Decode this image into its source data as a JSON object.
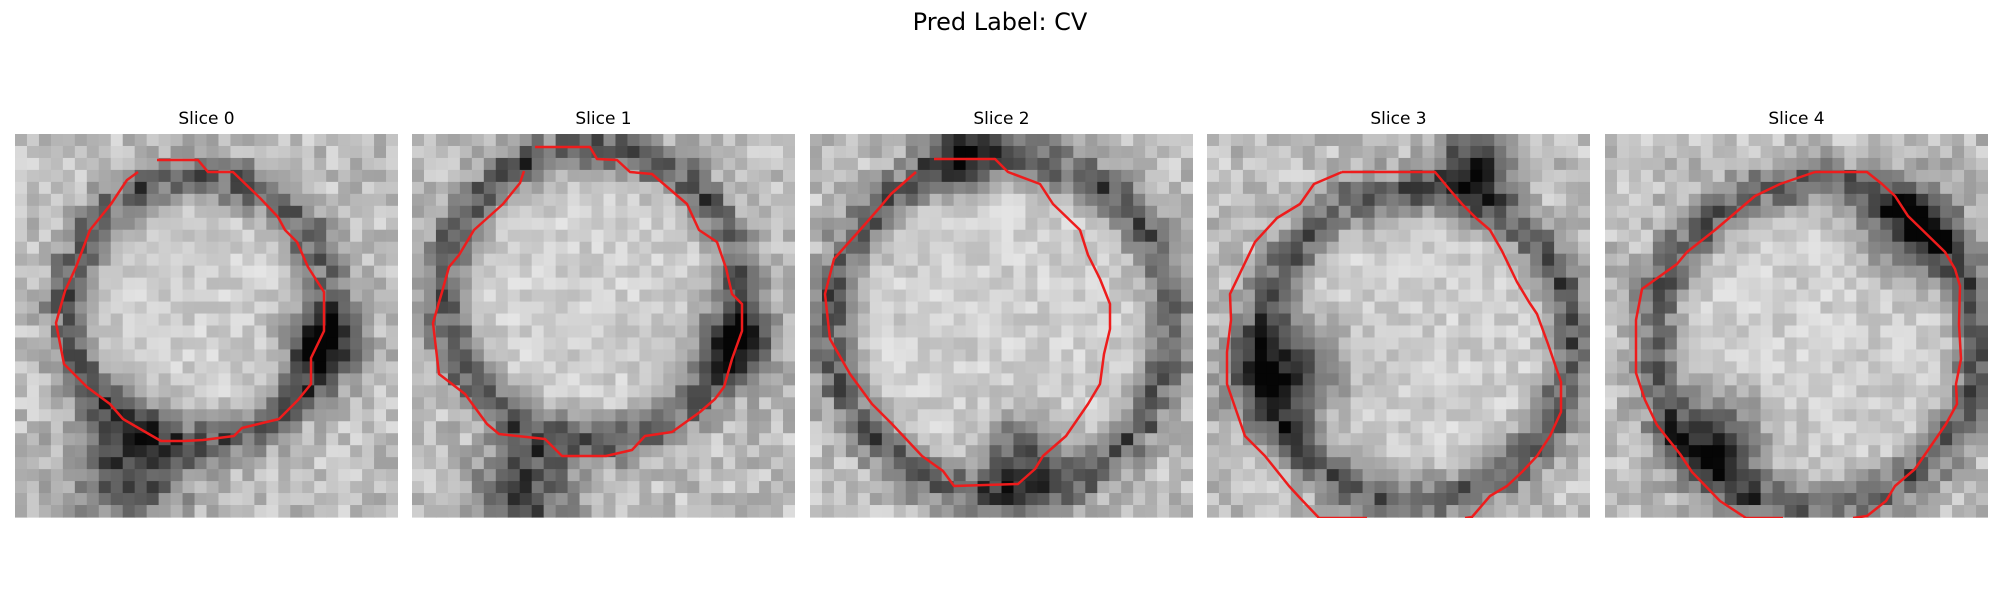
{
  "figure": {
    "title": "Pred Label: CV"
  },
  "panels": [
    {
      "title": "Slice 0",
      "seed": 11,
      "blob": [
        0.48,
        0.46,
        0.34
      ],
      "shadow": [
        [
          0.3,
          0.88,
          0.14
        ],
        [
          0.8,
          0.55,
          0.1
        ]
      ]
    },
    {
      "title": "Slice 1",
      "seed": 23,
      "blob": [
        0.47,
        0.42,
        0.38
      ],
      "shadow": [
        [
          0.3,
          0.92,
          0.12
        ],
        [
          0.85,
          0.55,
          0.1
        ]
      ]
    },
    {
      "title": "Slice 2",
      "seed": 37,
      "blob": [
        0.5,
        0.5,
        0.44
      ],
      "shadow": [
        [
          0.4,
          0.05,
          0.08
        ],
        [
          0.55,
          0.85,
          0.1
        ]
      ]
    },
    {
      "title": "Slice 3",
      "seed": 53,
      "blob": [
        0.55,
        0.55,
        0.4
      ],
      "shadow": [
        [
          0.2,
          0.62,
          0.14
        ],
        [
          0.7,
          0.08,
          0.1
        ]
      ]
    },
    {
      "title": "Slice 4",
      "seed": 71,
      "blob": [
        0.55,
        0.55,
        0.42
      ],
      "shadow": [
        [
          0.3,
          0.8,
          0.12
        ],
        [
          0.8,
          0.25,
          0.12
        ]
      ]
    }
  ],
  "colors": {
    "contour": "#ee1c1c"
  }
}
